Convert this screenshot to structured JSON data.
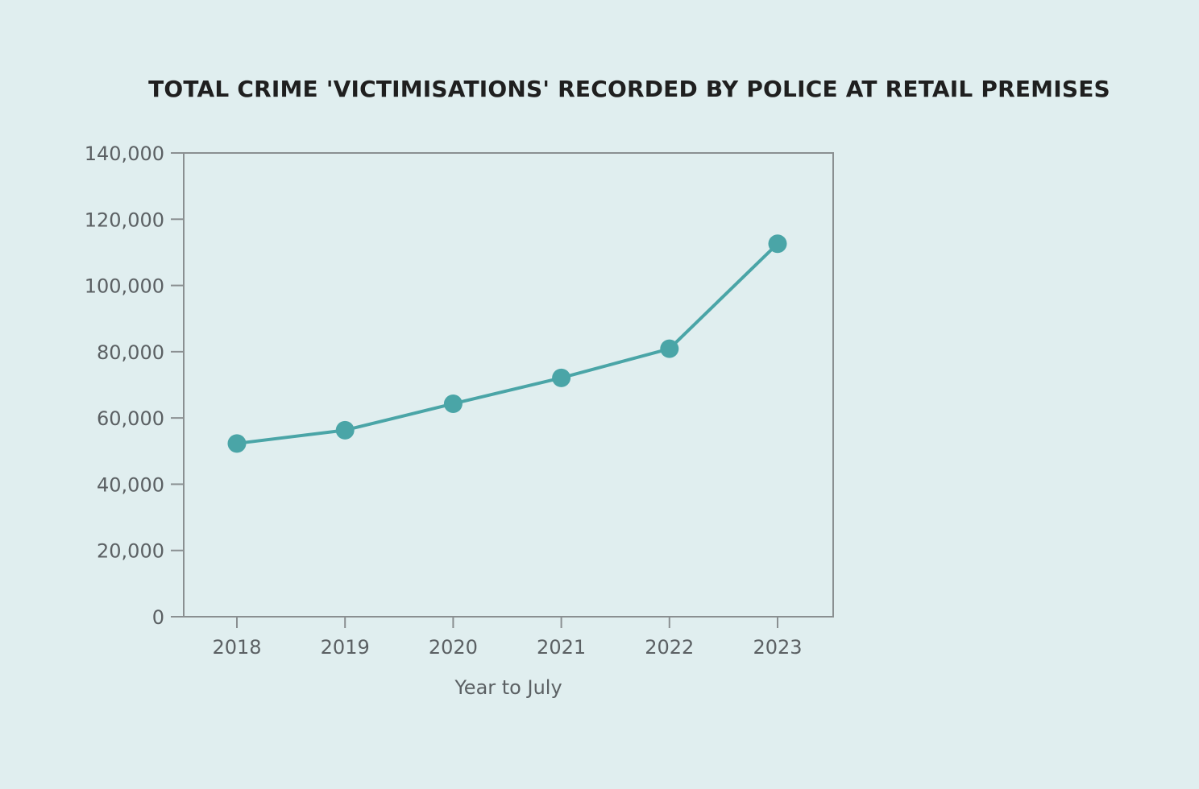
{
  "chart_data": {
    "type": "line",
    "title": "TOTAL CRIME 'VICTIMISATIONS' RECORDED BY POLICE AT RETAIL PREMISES",
    "xlabel": "Year to July",
    "ylabel": "",
    "categories": [
      "2018",
      "2019",
      "2020",
      "2021",
      "2022",
      "2023"
    ],
    "series": [
      {
        "values": [
          52300,
          56300,
          64300,
          72100,
          80900,
          112600
        ]
      }
    ],
    "ylim": [
      0,
      140000
    ],
    "yticks": [
      0,
      20000,
      40000,
      60000,
      80000,
      100000,
      120000,
      140000
    ],
    "ytick_labels": [
      "0",
      "20,000",
      "40,000",
      "60,000",
      "80,000",
      "100,000",
      "120,000",
      "140,000"
    ],
    "grid": false,
    "legend": "none",
    "colors": {
      "line": "#4aa5a7",
      "axis": "#8a8f91",
      "text": "#5b6063",
      "title": "#1f1f1f",
      "background": "#e0eeef"
    }
  }
}
